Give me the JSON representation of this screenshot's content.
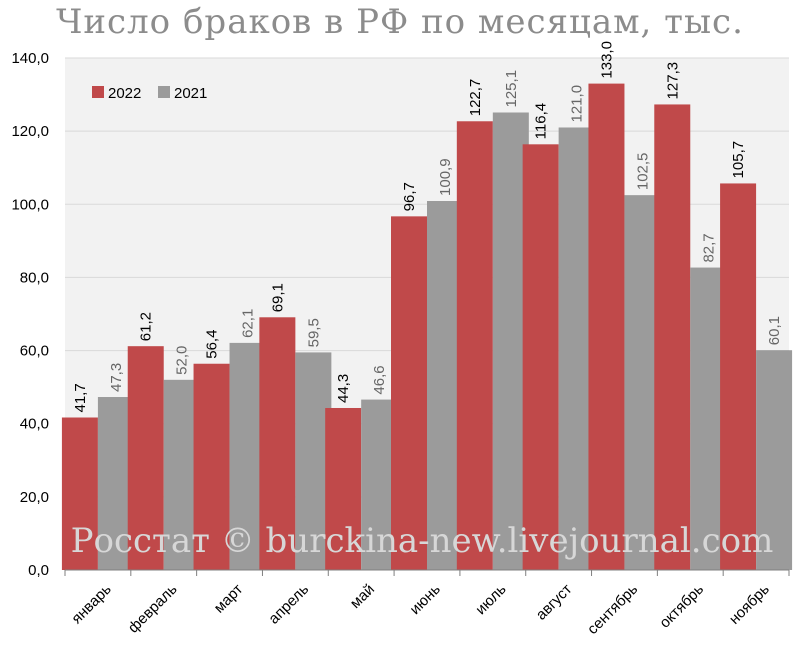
{
  "chart_data": {
    "type": "bar",
    "title": "Число браков в РФ по месяцам, тыс.",
    "categories": [
      "январь",
      "февраль",
      "март",
      "апрель",
      "май",
      "июнь",
      "июль",
      "август",
      "сентябрь",
      "октябрь",
      "ноябрь"
    ],
    "series": [
      {
        "name": "2022",
        "values": [
          41.7,
          61.2,
          56.4,
          69.1,
          44.3,
          96.7,
          122.7,
          116.4,
          133.0,
          127.3,
          105.7
        ],
        "labels": [
          "41,7",
          "61,2",
          "56,4",
          "69,1",
          "44,3",
          "96,7",
          "122,7",
          "116,4",
          "133,0",
          "127,3",
          "105,7"
        ]
      },
      {
        "name": "2021",
        "values": [
          47.3,
          52.0,
          62.1,
          59.5,
          46.6,
          100.9,
          125.1,
          121.0,
          102.5,
          82.7,
          60.1
        ],
        "labels": [
          "47,3",
          "52,0",
          "62,1",
          "59,5",
          "46,6",
          "100,9",
          "125,1",
          "121,0",
          "102,5",
          "82,7",
          "60,1"
        ]
      }
    ],
    "ylim": [
      0,
      140
    ],
    "yticks": [
      "0,0",
      "20,0",
      "40,0",
      "60,0",
      "80,0",
      "100,0",
      "120,0",
      "140,0"
    ],
    "grid": true,
    "legend_position": "top-left",
    "colors": {
      "2022": "#c0494a",
      "2021": "#9b9b9b",
      "grid": "#d9d9d9",
      "plot_bg": "#f2f2f2"
    },
    "watermark": "Росстат © burckina-new.livejournal.com"
  }
}
